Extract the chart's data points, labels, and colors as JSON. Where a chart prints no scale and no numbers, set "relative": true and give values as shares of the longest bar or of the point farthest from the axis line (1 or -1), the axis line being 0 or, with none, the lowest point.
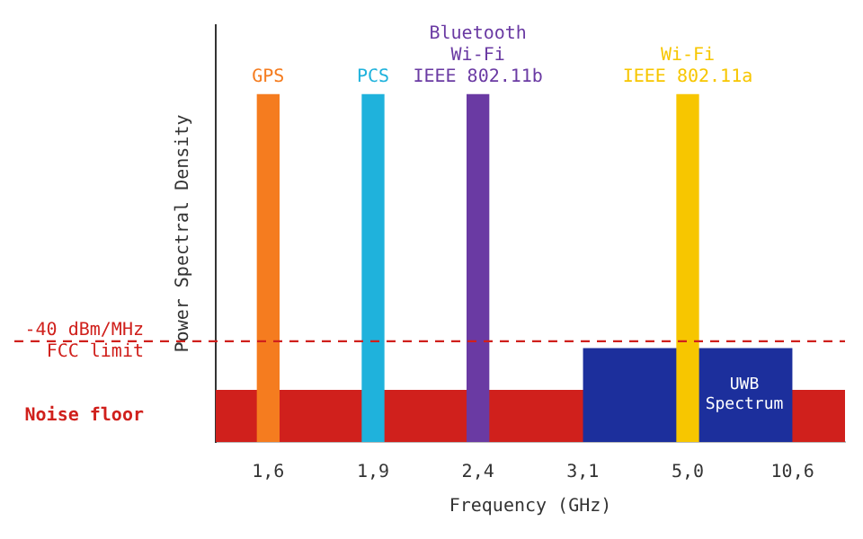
{
  "chart_data": {
    "type": "bar",
    "relative": true,
    "xlabel": "Frequency (GHz)",
    "ylabel": "Power Spectral Density",
    "categories": [
      "1,6",
      "1,9",
      "2,4",
      "3,1",
      "5,0",
      "10,6"
    ],
    "series": [
      {
        "name": "UWB Spectrum",
        "type": "area",
        "color": "#1c2f9c",
        "values": [
          null,
          null,
          null,
          0.27,
          null,
          0.27
        ]
      },
      {
        "name": "GPS",
        "color": "#f57c1f",
        "values": [
          1,
          null,
          null,
          null,
          null,
          null
        ]
      },
      {
        "name": "PCS",
        "color": "#1fb2dc",
        "values": [
          null,
          1,
          null,
          null,
          null,
          null
        ]
      },
      {
        "name": "Bluetooth\nWi-Fi\nIEEE 802.11b",
        "color": "#6a3aa3",
        "values": [
          null,
          null,
          1,
          null,
          null,
          null
        ]
      },
      {
        "name": "Wi-Fi\nIEEE 802.11a",
        "color": "#f7c600",
        "values": [
          null,
          null,
          null,
          null,
          1,
          null
        ]
      }
    ],
    "ref_lines": [
      {
        "axis": "y",
        "value": 0.29,
        "label": "-40 dBm/MHz\nFCC limit",
        "color": "#d0201c",
        "line_style": "dashed"
      }
    ],
    "bands": [
      {
        "axis": "y",
        "from": 0,
        "to": 0.15,
        "label": "Noise floor",
        "color": "#d0201c"
      }
    ],
    "grid": false,
    "legend": false
  }
}
